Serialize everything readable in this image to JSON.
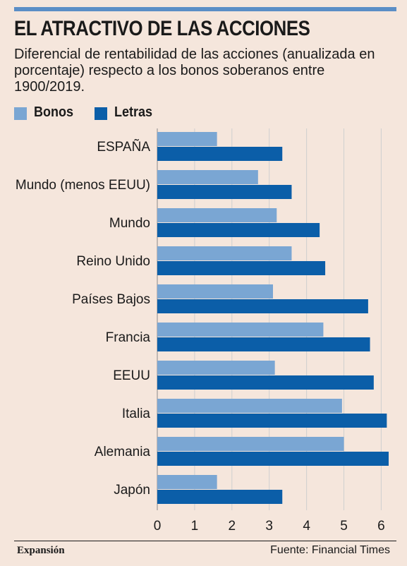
{
  "title": "EL ATRACTIVO DE LAS ACCIONES",
  "subtitle": "Diferencial de rentabilidad de las acciones (anualizada en porcentaje) respecto a los bonos soberanos entre 1900/2019.",
  "colors": {
    "background": "#f5e6dc",
    "rule": "#5b8ec6",
    "bonos": "#7aa6d3",
    "letras": "#0b5ea8",
    "grid": "#cfcfcf"
  },
  "chart_data": {
    "type": "bar",
    "orientation": "horizontal",
    "categories": [
      "ESPAÑA",
      "Mundo (menos EEUU)",
      "Mundo",
      "Reino Unido",
      "Países Bajos",
      "Francia",
      "EEUU",
      "Italia",
      "Alemania",
      "Japón"
    ],
    "series": [
      {
        "name": "Bonos",
        "values": [
          1.6,
          2.7,
          3.2,
          3.6,
          3.1,
          4.45,
          3.15,
          4.95,
          5.0,
          1.6
        ]
      },
      {
        "name": "Letras",
        "values": [
          3.35,
          3.6,
          4.35,
          4.5,
          5.65,
          5.7,
          5.8,
          6.15,
          6.2,
          3.35
        ]
      }
    ],
    "xlim": [
      0,
      6.2
    ],
    "xticks": [
      "0",
      "1",
      "2",
      "3",
      "4",
      "5",
      "6"
    ],
    "grid": true,
    "legend_position": "top-left"
  },
  "footer": {
    "brand": "Expansión",
    "source": "Fuente: Financial Times"
  }
}
